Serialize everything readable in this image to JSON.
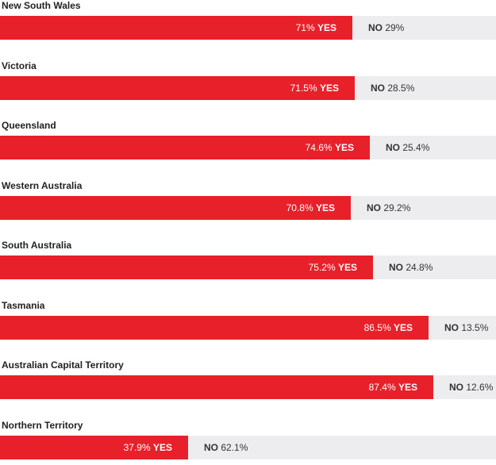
{
  "chart_data": {
    "type": "bar",
    "orientation": "horizontal-stacked",
    "colors": {
      "yes": "#e8202a",
      "no_track": "#ededf0"
    },
    "yes_word": "YES",
    "no_word": "NO",
    "rows": [
      {
        "state": "New South Wales",
        "yes": 71,
        "no": 29,
        "yes_text": "71%",
        "no_text": "29%"
      },
      {
        "state": "Victoria",
        "yes": 71.5,
        "no": 28.5,
        "yes_text": "71.5%",
        "no_text": "28.5%"
      },
      {
        "state": "Queensland",
        "yes": 74.6,
        "no": 25.4,
        "yes_text": "74.6%",
        "no_text": "25.4%"
      },
      {
        "state": "Western Australia",
        "yes": 70.8,
        "no": 29.2,
        "yes_text": "70.8%",
        "no_text": "29.2%"
      },
      {
        "state": "South Australia",
        "yes": 75.2,
        "no": 24.8,
        "yes_text": "75.2%",
        "no_text": "24.8%"
      },
      {
        "state": "Tasmania",
        "yes": 86.5,
        "no": 13.5,
        "yes_text": "86.5%",
        "no_text": "13.5%"
      },
      {
        "state": "Australian Capital Territory",
        "yes": 87.4,
        "no": 12.6,
        "yes_text": "87.4%",
        "no_text": "12.6%"
      },
      {
        "state": "Northern Territory",
        "yes": 37.9,
        "no": 62.1,
        "yes_text": "37.9%",
        "no_text": "62.1%"
      }
    ]
  }
}
